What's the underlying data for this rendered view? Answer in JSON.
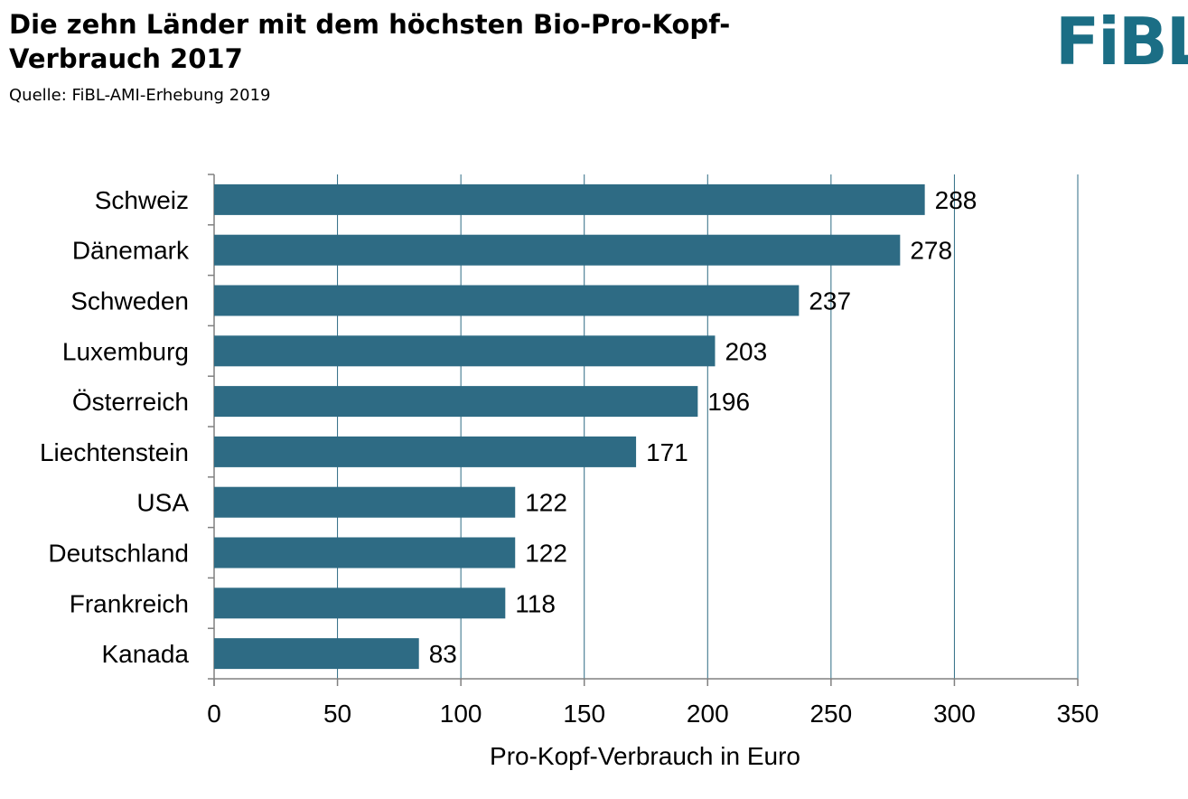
{
  "header": {
    "title": "Die zehn Länder mit dem höchsten Bio-Pro-Kopf-Verbrauch 2017",
    "source": "Quelle: FiBL-AMI-Erhebung 2019"
  },
  "logo": {
    "text": "FiBL",
    "color": "#1b6e85"
  },
  "colors": {
    "bar": "#2e6b84",
    "grid": "#2e6b84",
    "axis": "#808080"
  },
  "chart_data": {
    "type": "bar",
    "orientation": "horizontal",
    "title": "Die zehn Länder mit dem höchsten Bio-Pro-Kopf-Verbrauch 2017",
    "categories": [
      "Schweiz",
      "Dänemark",
      "Schweden",
      "Luxemburg",
      "Österreich",
      "Liechtenstein",
      "USA",
      "Deutschland",
      "Frankreich",
      "Kanada"
    ],
    "values": [
      288,
      278,
      237,
      203,
      196,
      171,
      122,
      122,
      118,
      83
    ],
    "xlabel": "Pro-Kopf-Verbrauch in Euro",
    "ylabel": "",
    "xlim": [
      0,
      350
    ],
    "xticks": [
      "0",
      "50",
      "100",
      "150",
      "200",
      "250",
      "300",
      "350"
    ],
    "grid": "vertical",
    "legend": "none"
  }
}
